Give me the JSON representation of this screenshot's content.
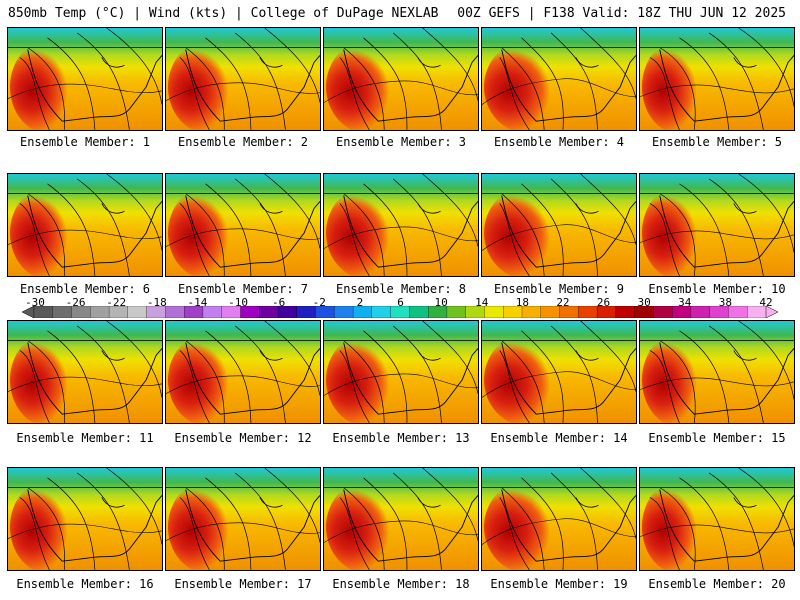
{
  "header": {
    "left": "850mb Temp (°C) | Wind (kts) | College of DuPage NEXLAB",
    "right": "00Z GEFS | F138 Valid: 18Z THU JUN 12 2025"
  },
  "panels": [
    {
      "caption": "Ensemble Member: 1"
    },
    {
      "caption": "Ensemble Member: 2"
    },
    {
      "caption": "Ensemble Member: 3"
    },
    {
      "caption": "Ensemble Member: 4"
    },
    {
      "caption": "Ensemble Member: 5"
    },
    {
      "caption": "Ensemble Member: 6"
    },
    {
      "caption": "Ensemble Member: 7"
    },
    {
      "caption": "Ensemble Member: 8"
    },
    {
      "caption": "Ensemble Member: 9"
    },
    {
      "caption": "Ensemble Member: 10"
    },
    {
      "caption": "Ensemble Member: 11"
    },
    {
      "caption": "Ensemble Member: 12"
    },
    {
      "caption": "Ensemble Member: 13"
    },
    {
      "caption": "Ensemble Member: 14"
    },
    {
      "caption": "Ensemble Member: 15"
    },
    {
      "caption": "Ensemble Member: 16"
    },
    {
      "caption": "Ensemble Member: 17"
    },
    {
      "caption": "Ensemble Member: 18"
    },
    {
      "caption": "Ensemble Member: 19"
    },
    {
      "caption": "Ensemble Member: 20"
    }
  ],
  "colorbar": {
    "ticks": [
      "-30",
      "-26",
      "-22",
      "-18",
      "-14",
      "-10",
      "-6",
      "-2",
      "2",
      "6",
      "10",
      "14",
      "18",
      "22",
      "26",
      "30",
      "34",
      "38",
      "42"
    ],
    "colors": [
      "#5a5a5a",
      "#6e6e6e",
      "#888888",
      "#a0a0a0",
      "#b4b4b4",
      "#c8c8c8",
      "#c8a0e0",
      "#b070d8",
      "#a040c8",
      "#c080f0",
      "#e080f0",
      "#a000c0",
      "#7000a0",
      "#4000a0",
      "#2020c0",
      "#2050e0",
      "#2080f0",
      "#10b0f0",
      "#20d0e8",
      "#20e0c0",
      "#10c080",
      "#30b040",
      "#70c020",
      "#b0d810",
      "#e8e800",
      "#f8d000",
      "#f8b000",
      "#f89000",
      "#f07000",
      "#e84000",
      "#d82000",
      "#c00000",
      "#a00000",
      "#b00040",
      "#c00080",
      "#d020b0",
      "#e040d0",
      "#f070e8",
      "#f8b0f0"
    ]
  }
}
